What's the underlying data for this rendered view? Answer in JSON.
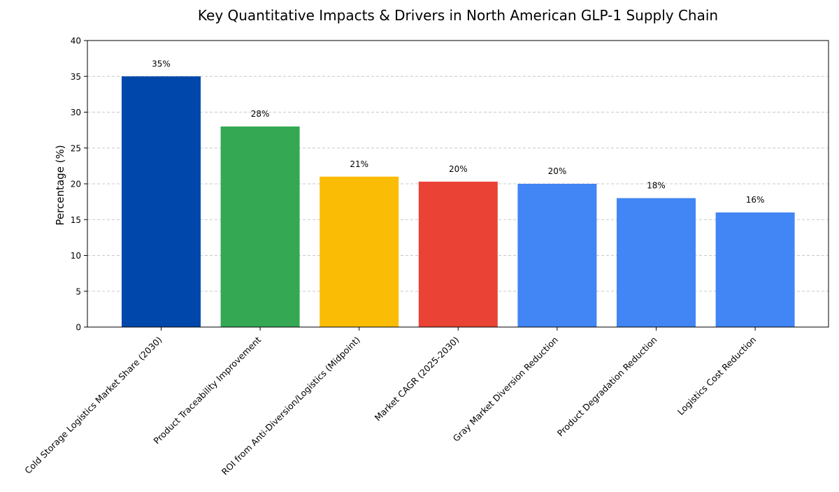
{
  "chart_data": {
    "type": "bar",
    "title": "Key Quantitative Impacts & Drivers in North American GLP-1 Supply Chain",
    "xlabel": "",
    "ylabel": "Percentage (%)",
    "ylim": [
      0,
      40
    ],
    "yticks": [
      0,
      5,
      10,
      15,
      20,
      25,
      30,
      35,
      40
    ],
    "grid": "y-dashed",
    "categories": [
      "Cold Storage Logistics Market Share (2030)",
      "Product Traceability Improvement",
      "ROI from Anti-Diversion/Logistics (Midpoint)",
      "Market CAGR (2025-2030)",
      "Gray Market Diversion Reduction",
      "Product Degradation Reduction",
      "Logistics Cost Reduction"
    ],
    "values": [
      35,
      28,
      21,
      20.3,
      20,
      18,
      16
    ],
    "data_labels": [
      "35%",
      "28%",
      "21%",
      "20%",
      "20%",
      "18%",
      "16%"
    ],
    "colors": [
      "#0047AB",
      "#34A853",
      "#FBBC05",
      "#EA4335",
      "#4285F4",
      "#4285F4",
      "#4285F4"
    ]
  }
}
